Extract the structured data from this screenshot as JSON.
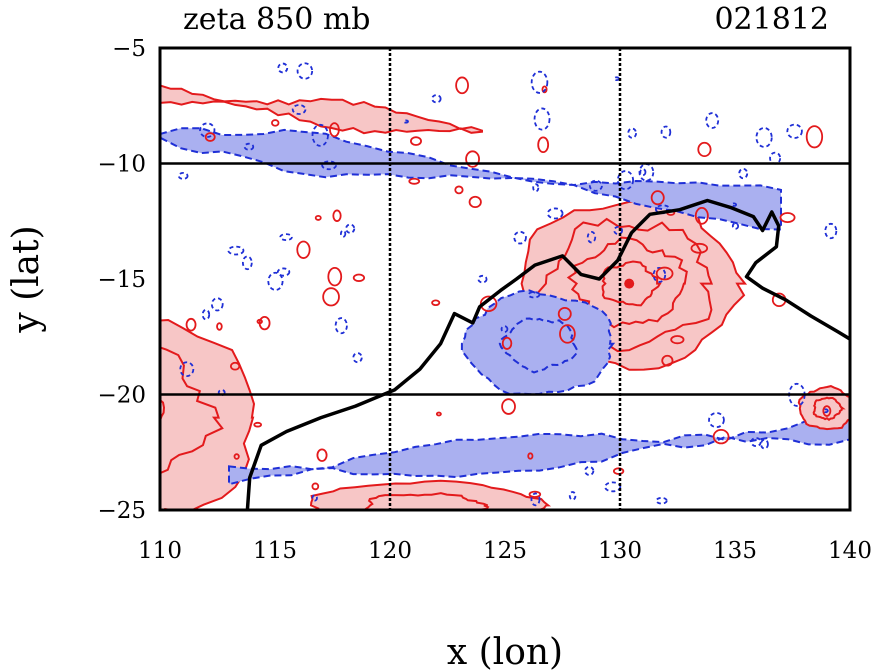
{
  "chart_data": {
    "type": "contour",
    "title": "zeta 850 mb",
    "subtitle": "021812",
    "xlabel": "x (lon)",
    "ylabel": "y (lat)",
    "xlim": [
      110,
      140
    ],
    "ylim": [
      -25,
      -5
    ],
    "xticks": [
      110,
      115,
      120,
      125,
      130,
      135,
      140
    ],
    "yticks": [
      -5,
      -10,
      -15,
      -20,
      -25
    ],
    "xtick_labels": [
      "110",
      "115",
      "120",
      "125",
      "130",
      "135",
      "140"
    ],
    "ytick_labels": [
      "−5",
      "−10",
      "−15",
      "−20",
      "−25"
    ],
    "grid_x": [
      120,
      130
    ],
    "grid_y": [
      -10,
      -20
    ],
    "grid": true,
    "colors": {
      "positive_contour": "#e31a1c",
      "positive_fill": "#f7c6c6",
      "negative_contour": "#1f2fd6",
      "negative_fill": "#aab0f0",
      "coastline": "#000000",
      "grid": "#000000"
    },
    "coastline": [
      [
        113.8,
        -25
      ],
      [
        113.9,
        -23.6
      ],
      [
        114.4,
        -22.2
      ],
      [
        115.5,
        -21.6
      ],
      [
        117.0,
        -21.0
      ],
      [
        118.5,
        -20.5
      ],
      [
        120.2,
        -19.8
      ],
      [
        121.3,
        -18.9
      ],
      [
        122.2,
        -17.8
      ],
      [
        122.8,
        -16.5
      ],
      [
        123.6,
        -16.9
      ],
      [
        123.9,
        -16.2
      ],
      [
        124.8,
        -15.5
      ],
      [
        125.5,
        -15.0
      ],
      [
        126.3,
        -14.4
      ],
      [
        127.5,
        -14.0
      ],
      [
        128.3,
        -14.8
      ],
      [
        129.1,
        -15.0
      ],
      [
        129.9,
        -14.2
      ],
      [
        130.5,
        -13.0
      ],
      [
        131.3,
        -12.2
      ],
      [
        132.6,
        -12.0
      ],
      [
        133.8,
        -11.6
      ],
      [
        134.8,
        -11.9
      ],
      [
        135.8,
        -12.3
      ],
      [
        136.2,
        -12.9
      ],
      [
        136.6,
        -12.1
      ],
      [
        136.9,
        -12.7
      ],
      [
        136.8,
        -13.6
      ],
      [
        135.9,
        -14.3
      ],
      [
        135.5,
        -14.9
      ],
      [
        136.2,
        -15.4
      ],
      [
        137.2,
        -15.9
      ],
      [
        138.3,
        -16.6
      ],
      [
        139.5,
        -17.3
      ],
      [
        140.0,
        -17.6
      ]
    ],
    "features": [
      {
        "sign": "positive",
        "kind": "vortex",
        "center": [
          130.4,
          -15.2
        ],
        "radius_deg": [
          4.7,
          3.6
        ],
        "rings": 4,
        "peak": true
      },
      {
        "sign": "positive",
        "kind": "arc",
        "center": [
          108.0,
          -21.0
        ],
        "radius_deg": [
          6.2,
          4.6
        ],
        "rings": 3
      },
      {
        "sign": "positive",
        "kind": "band",
        "from": [
          110.0,
          -7.0
        ],
        "to": [
          124.0,
          -8.6
        ],
        "width_deg": 1.2
      },
      {
        "sign": "negative",
        "kind": "band",
        "from": [
          110.0,
          -8.8
        ],
        "to": [
          137.0,
          -12.0
        ],
        "width_deg": 1.6
      },
      {
        "sign": "negative",
        "kind": "band",
        "from": [
          113.0,
          -23.5
        ],
        "to": [
          140.0,
          -21.5
        ],
        "width_deg": 1.8
      },
      {
        "sign": "negative",
        "kind": "patch",
        "center": [
          126.5,
          -17.8
        ],
        "radius_deg": [
          3.2,
          2.2
        ]
      },
      {
        "sign": "positive",
        "kind": "patch",
        "center": [
          121.5,
          -24.8
        ],
        "radius_deg": [
          5.0,
          1.0
        ]
      },
      {
        "sign": "positive",
        "kind": "patch",
        "center": [
          139.0,
          -20.6
        ],
        "radius_deg": [
          1.2,
          0.9
        ]
      }
    ],
    "legend": "none"
  }
}
